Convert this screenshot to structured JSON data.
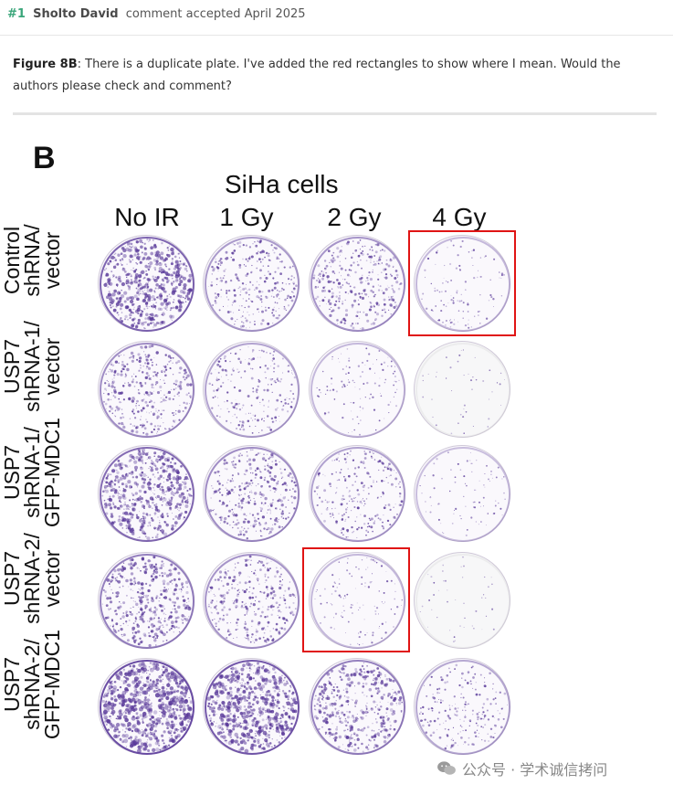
{
  "header": {
    "number": "#1",
    "author": "Sholto David",
    "status": "comment accepted April 2025"
  },
  "comment": {
    "figure_ref": "Figure 8B",
    "text": ": There is a duplicate plate. I've added the red rectangles to show where I mean. Would the authors please check and comment?"
  },
  "figure": {
    "panel_letter": "B",
    "title": "SiHa cells",
    "columns": [
      "No IR",
      "1 Gy",
      "2 Gy",
      "4 Gy"
    ],
    "rows": [
      {
        "line1": "Control",
        "line2": "shRNA/",
        "line3": "vector"
      },
      {
        "line1": "USP7",
        "line2": "shRNA-1/",
        "line3": "vector"
      },
      {
        "line1": "USP7",
        "line2": "shRNA-1/",
        "line3": "GFP-MDC1"
      },
      {
        "line1": "USP7",
        "line2": "shRNA-2/",
        "line3": "vector"
      },
      {
        "line1": "USP7",
        "line2": "shRNA-2/",
        "line3": "GFP-MDC1"
      }
    ],
    "plate_density": [
      [
        0.75,
        0.35,
        0.4,
        0.12
      ],
      [
        0.45,
        0.28,
        0.12,
        0.02
      ],
      [
        0.7,
        0.45,
        0.3,
        0.08
      ],
      [
        0.55,
        0.4,
        0.12,
        0.02
      ],
      [
        0.95,
        0.85,
        0.55,
        0.25
      ]
    ],
    "colony_color": "#5a3a9a",
    "highlight_color": "#e01414"
  },
  "watermark": {
    "text": "公众号 · 学术诚信拷问"
  }
}
